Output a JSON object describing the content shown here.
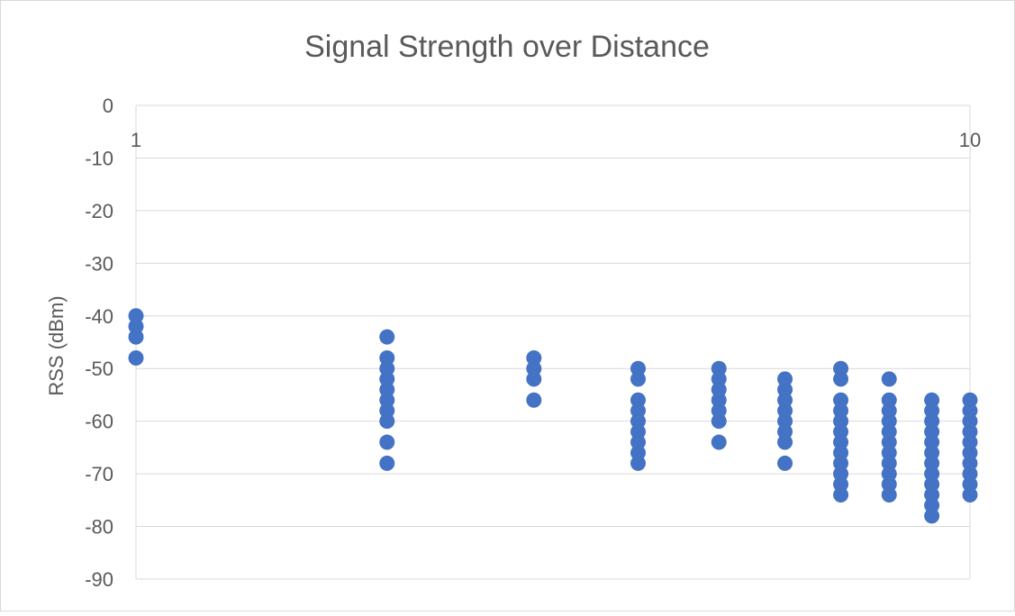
{
  "chart_data": {
    "type": "scatter",
    "title": "Signal Strength over Distance",
    "xlabel": "",
    "ylabel": "RSS (dBm)",
    "x_scale": "log",
    "xlim": [
      1,
      10
    ],
    "ylim": [
      -90,
      0
    ],
    "x_tick_labels": [
      {
        "value": 1,
        "label": "1"
      },
      {
        "value": 10,
        "label": "10"
      }
    ],
    "y_ticks": [
      0,
      -10,
      -20,
      -30,
      -40,
      -50,
      -60,
      -70,
      -80,
      -90
    ],
    "grid": true,
    "legend": "none",
    "marker_color": "#4472c4",
    "series": [
      {
        "points": [
          {
            "x": 1,
            "y": -40
          },
          {
            "x": 1,
            "y": -42
          },
          {
            "x": 1,
            "y": -44
          },
          {
            "x": 1,
            "y": -48
          },
          {
            "x": 2,
            "y": -44
          },
          {
            "x": 2,
            "y": -48
          },
          {
            "x": 2,
            "y": -50
          },
          {
            "x": 2,
            "y": -52
          },
          {
            "x": 2,
            "y": -54
          },
          {
            "x": 2,
            "y": -56
          },
          {
            "x": 2,
            "y": -58
          },
          {
            "x": 2,
            "y": -60
          },
          {
            "x": 2,
            "y": -64
          },
          {
            "x": 2,
            "y": -68
          },
          {
            "x": 3,
            "y": -48
          },
          {
            "x": 3,
            "y": -50
          },
          {
            "x": 3,
            "y": -52
          },
          {
            "x": 3,
            "y": -56
          },
          {
            "x": 4,
            "y": -50
          },
          {
            "x": 4,
            "y": -52
          },
          {
            "x": 4,
            "y": -56
          },
          {
            "x": 4,
            "y": -58
          },
          {
            "x": 4,
            "y": -60
          },
          {
            "x": 4,
            "y": -62
          },
          {
            "x": 4,
            "y": -64
          },
          {
            "x": 4,
            "y": -66
          },
          {
            "x": 4,
            "y": -68
          },
          {
            "x": 5,
            "y": -50
          },
          {
            "x": 5,
            "y": -52
          },
          {
            "x": 5,
            "y": -54
          },
          {
            "x": 5,
            "y": -56
          },
          {
            "x": 5,
            "y": -58
          },
          {
            "x": 5,
            "y": -60
          },
          {
            "x": 5,
            "y": -64
          },
          {
            "x": 6,
            "y": -52
          },
          {
            "x": 6,
            "y": -54
          },
          {
            "x": 6,
            "y": -56
          },
          {
            "x": 6,
            "y": -58
          },
          {
            "x": 6,
            "y": -60
          },
          {
            "x": 6,
            "y": -62
          },
          {
            "x": 6,
            "y": -64
          },
          {
            "x": 6,
            "y": -68
          },
          {
            "x": 7,
            "y": -50
          },
          {
            "x": 7,
            "y": -52
          },
          {
            "x": 7,
            "y": -56
          },
          {
            "x": 7,
            "y": -58
          },
          {
            "x": 7,
            "y": -60
          },
          {
            "x": 7,
            "y": -62
          },
          {
            "x": 7,
            "y": -64
          },
          {
            "x": 7,
            "y": -66
          },
          {
            "x": 7,
            "y": -68
          },
          {
            "x": 7,
            "y": -70
          },
          {
            "x": 7,
            "y": -72
          },
          {
            "x": 7,
            "y": -74
          },
          {
            "x": 8,
            "y": -52
          },
          {
            "x": 8,
            "y": -56
          },
          {
            "x": 8,
            "y": -58
          },
          {
            "x": 8,
            "y": -60
          },
          {
            "x": 8,
            "y": -62
          },
          {
            "x": 8,
            "y": -64
          },
          {
            "x": 8,
            "y": -66
          },
          {
            "x": 8,
            "y": -68
          },
          {
            "x": 8,
            "y": -70
          },
          {
            "x": 8,
            "y": -72
          },
          {
            "x": 8,
            "y": -74
          },
          {
            "x": 9,
            "y": -56
          },
          {
            "x": 9,
            "y": -58
          },
          {
            "x": 9,
            "y": -60
          },
          {
            "x": 9,
            "y": -62
          },
          {
            "x": 9,
            "y": -64
          },
          {
            "x": 9,
            "y": -66
          },
          {
            "x": 9,
            "y": -68
          },
          {
            "x": 9,
            "y": -70
          },
          {
            "x": 9,
            "y": -72
          },
          {
            "x": 9,
            "y": -74
          },
          {
            "x": 9,
            "y": -76
          },
          {
            "x": 9,
            "y": -78
          },
          {
            "x": 10,
            "y": -56
          },
          {
            "x": 10,
            "y": -58
          },
          {
            "x": 10,
            "y": -60
          },
          {
            "x": 10,
            "y": -62
          },
          {
            "x": 10,
            "y": -64
          },
          {
            "x": 10,
            "y": -66
          },
          {
            "x": 10,
            "y": -68
          },
          {
            "x": 10,
            "y": -70
          },
          {
            "x": 10,
            "y": -72
          },
          {
            "x": 10,
            "y": -74
          }
        ]
      }
    ]
  }
}
